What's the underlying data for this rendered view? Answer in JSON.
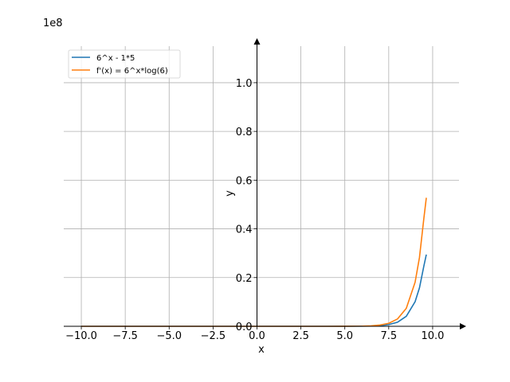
{
  "chart_data": {
    "type": "line",
    "title": "",
    "xlabel": "x",
    "ylabel": "y",
    "offset_text": "1e8",
    "xlim": [
      -11,
      11.5
    ],
    "ylim": [
      0,
      1.15
    ],
    "xticks": [
      -10,
      -7.5,
      -5,
      -2.5,
      0,
      2.5,
      5,
      7.5,
      10
    ],
    "xtick_labels": [
      "−10.0",
      "−7.5",
      "−5.0",
      "−2.5",
      "0.0",
      "2.5",
      "5.0",
      "7.5",
      "10.0"
    ],
    "yticks": [
      0,
      0.2,
      0.4,
      0.6,
      0.8,
      1.0
    ],
    "ytick_labels": [
      "0.0",
      "0.2",
      "0.4",
      "0.6",
      "0.8",
      "1.0"
    ],
    "grid": true,
    "legend_position": "top-left",
    "series": [
      {
        "name": "6^x - 1*5",
        "color": "#1f77b4",
        "x": [
          -10,
          -8,
          -6,
          -4,
          -2,
          0,
          2,
          4,
          5,
          6,
          6.5,
          7,
          7.5,
          8,
          8.5,
          9,
          9.25,
          9.5,
          9.64
        ],
        "y": [
          0,
          0,
          0,
          0,
          0,
          0,
          0,
          0,
          0.0001,
          0.0005,
          0.0011,
          0.0028,
          0.0069,
          0.0168,
          0.0412,
          0.1008,
          0.1579,
          0.2474,
          0.2945
        ]
      },
      {
        "name": "f'(x) = 6^x*log(6)",
        "color": "#ff7f0e",
        "x": [
          -10,
          -8,
          -6,
          -4,
          -2,
          0,
          2,
          4,
          5,
          6,
          6.5,
          7,
          7.5,
          8,
          8.5,
          9,
          9.25,
          9.5,
          9.64
        ],
        "y": [
          0,
          0,
          0,
          0,
          0,
          0,
          0,
          0,
          0.0001,
          0.0008,
          0.002,
          0.005,
          0.0123,
          0.0301,
          0.0738,
          0.1806,
          0.2827,
          0.4433,
          0.5277
        ]
      }
    ]
  }
}
